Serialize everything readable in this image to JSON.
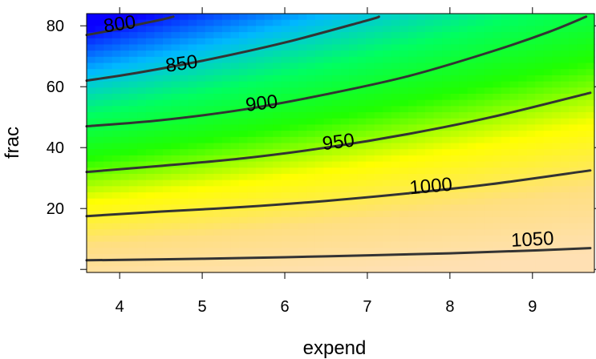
{
  "chart_data": {
    "type": "heatmap",
    "title": "",
    "xlabel": "expend",
    "ylabel": "frac",
    "xlim": [
      3.6,
      9.75
    ],
    "ylim": [
      -1,
      84
    ],
    "x_ticks": [
      4,
      5,
      6,
      7,
      8,
      9
    ],
    "x_tick_labels": [
      "4",
      "5",
      "6",
      "7",
      "8",
      "9"
    ],
    "y_ticks": [
      0,
      20,
      40,
      60,
      80
    ],
    "y_tick_labels": [
      "",
      "20",
      "40",
      "60",
      "80"
    ],
    "color_scale": {
      "z_range": [
        785,
        1075
      ],
      "stops": [
        "#0a00ff",
        "#00b8ff",
        "#00ff60",
        "#20ff00",
        "#ffff00",
        "#ffdf80",
        "#ffe0b3"
      ]
    },
    "contour_levels": [
      800,
      850,
      900,
      950,
      1000,
      1050
    ],
    "contours": [
      {
        "level": 800,
        "label": "800",
        "points": [
          [
            3.6,
            77
          ],
          [
            3.9,
            78.5
          ],
          [
            4.2,
            80.3
          ],
          [
            4.5,
            82
          ],
          [
            4.65,
            83
          ]
        ],
        "label_at": [
          4.0,
          80.5
        ],
        "label_rotation": -8
      },
      {
        "level": 850,
        "label": "850",
        "points": [
          [
            3.6,
            62
          ],
          [
            4.2,
            64.5
          ],
          [
            5.0,
            68.5
          ],
          [
            6.0,
            74.5
          ],
          [
            7.0,
            81.8
          ],
          [
            7.14,
            83
          ]
        ],
        "label_at": [
          4.75,
          67.5
        ],
        "label_rotation": -8
      },
      {
        "level": 900,
        "label": "900",
        "points": [
          [
            3.6,
            47
          ],
          [
            4.5,
            49
          ],
          [
            5.5,
            52.5
          ],
          [
            6.5,
            57.5
          ],
          [
            7.5,
            63.5
          ],
          [
            8.5,
            71.5
          ],
          [
            9.2,
            78
          ],
          [
            9.65,
            83
          ]
        ],
        "label_at": [
          5.72,
          54.5
        ],
        "label_rotation": -7
      },
      {
        "level": 950,
        "label": "950",
        "points": [
          [
            3.6,
            32
          ],
          [
            4.5,
            34
          ],
          [
            5.5,
            36.5
          ],
          [
            6.5,
            40
          ],
          [
            7.5,
            44.5
          ],
          [
            8.5,
            50
          ],
          [
            9.7,
            58
          ]
        ],
        "label_at": [
          6.65,
          41.8
        ],
        "label_rotation": -7
      },
      {
        "level": 1000,
        "label": "1000",
        "points": [
          [
            3.6,
            17.5
          ],
          [
            4.5,
            19
          ],
          [
            5.5,
            20.5
          ],
          [
            6.5,
            22.5
          ],
          [
            7.5,
            25
          ],
          [
            8.5,
            28
          ],
          [
            9.7,
            32.5
          ]
        ],
        "label_at": [
          7.77,
          27.3
        ],
        "label_rotation": -5
      },
      {
        "level": 1050,
        "label": "1050",
        "points": [
          [
            3.6,
            3
          ],
          [
            5.0,
            3.5
          ],
          [
            6.5,
            4.3
          ],
          [
            8.0,
            5.3
          ],
          [
            9.0,
            6.2
          ],
          [
            9.7,
            7
          ]
        ],
        "label_at": [
          9.0,
          9.8
        ],
        "label_rotation": -3
      }
    ]
  }
}
